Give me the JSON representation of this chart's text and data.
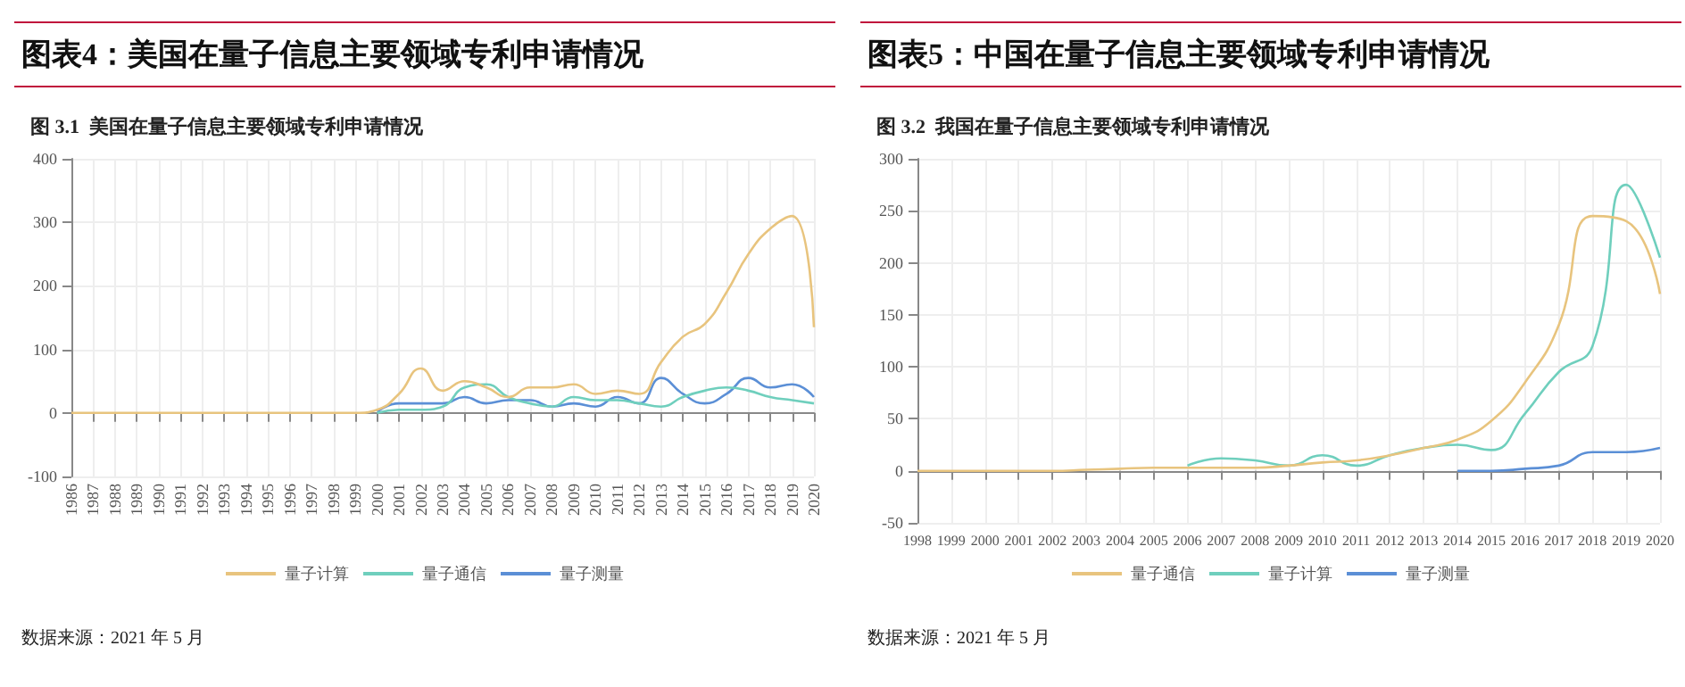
{
  "chart_data": [
    {
      "type": "line",
      "title": "图表4：美国在量子信息主要领域专利申请情况",
      "subtitle": "图 3.1  美国在量子信息主要领域专利申请情况",
      "annotations": [
        "数据来源：2021 年 5 月"
      ],
      "categories": [
        "1986",
        "1987",
        "1988",
        "1989",
        "1990",
        "1991",
        "1992",
        "1993",
        "1994",
        "1995",
        "1996",
        "1997",
        "1998",
        "1999",
        "2000",
        "2001",
        "2002",
        "2003",
        "2004",
        "2005",
        "2006",
        "2007",
        "2008",
        "2009",
        "2010",
        "2011",
        "2012",
        "2013",
        "2014",
        "2015",
        "2016",
        "2017",
        "2018",
        "2019",
        "2020"
      ],
      "series": [
        {
          "name": "量子计算",
          "color": "#e8c47e",
          "values": [
            0,
            0,
            0,
            0,
            0,
            0,
            0,
            0,
            0,
            0,
            0,
            0,
            0,
            0,
            5,
            30,
            70,
            35,
            50,
            40,
            25,
            40,
            40,
            45,
            30,
            35,
            30,
            80,
            120,
            140,
            190,
            250,
            290,
            310,
            135
          ]
        },
        {
          "name": "量子通信",
          "color": "#6fcfbd",
          "values": [
            null,
            null,
            null,
            null,
            null,
            null,
            null,
            null,
            null,
            null,
            null,
            null,
            null,
            null,
            0,
            5,
            5,
            10,
            40,
            45,
            25,
            15,
            10,
            25,
            20,
            20,
            15,
            10,
            25,
            35,
            40,
            35,
            25,
            20,
            15
          ]
        },
        {
          "name": "量子测量",
          "color": "#5b8fd6",
          "values": [
            null,
            null,
            null,
            null,
            null,
            null,
            null,
            null,
            null,
            null,
            null,
            null,
            null,
            null,
            2,
            15,
            15,
            15,
            25,
            15,
            20,
            20,
            10,
            15,
            10,
            25,
            15,
            55,
            30,
            15,
            30,
            55,
            40,
            45,
            25
          ]
        }
      ],
      "ylim": [
        -100,
        400
      ],
      "yticks": [
        -100,
        0,
        100,
        200,
        300,
        400
      ],
      "grid": true,
      "legend": "bottom",
      "marker": "none",
      "line_style": "solid"
    },
    {
      "type": "line",
      "title": "图表5：中国在量子信息主要领域专利申请情况",
      "subtitle": "图 3.2  我国在量子信息主要领域专利申请情况",
      "annotations": [
        "数据来源：2021 年 5 月"
      ],
      "categories": [
        "1998",
        "1999",
        "2000",
        "2001",
        "2002",
        "2003",
        "2004",
        "2005",
        "2006",
        "2007",
        "2008",
        "2009",
        "2010",
        "2011",
        "2012",
        "2013",
        "2014",
        "2015",
        "2016",
        "2017",
        "2018",
        "2019",
        "2020"
      ],
      "series": [
        {
          "name": "量子通信",
          "color": "#e8c47e",
          "values": [
            0,
            0,
            0,
            0,
            0,
            1,
            2,
            3,
            3,
            3,
            3,
            5,
            8,
            10,
            15,
            22,
            30,
            48,
            85,
            140,
            245,
            240,
            170
          ]
        },
        {
          "name": "量子计算",
          "color": "#6fcfbd",
          "values": [
            null,
            null,
            null,
            null,
            null,
            null,
            null,
            null,
            5,
            12,
            10,
            5,
            15,
            5,
            15,
            22,
            25,
            20,
            55,
            95,
            120,
            275,
            205
          ]
        },
        {
          "name": "量子测量",
          "color": "#5b8fd6",
          "values": [
            null,
            null,
            null,
            null,
            null,
            null,
            null,
            null,
            null,
            null,
            null,
            null,
            null,
            null,
            null,
            null,
            0,
            0,
            2,
            5,
            18,
            18,
            22
          ]
        }
      ],
      "ylim": [
        -50,
        300
      ],
      "yticks": [
        -50,
        0,
        50,
        100,
        150,
        200,
        250,
        300
      ],
      "grid": true,
      "legend": "bottom",
      "marker": "none",
      "line_style": "solid"
    }
  ]
}
